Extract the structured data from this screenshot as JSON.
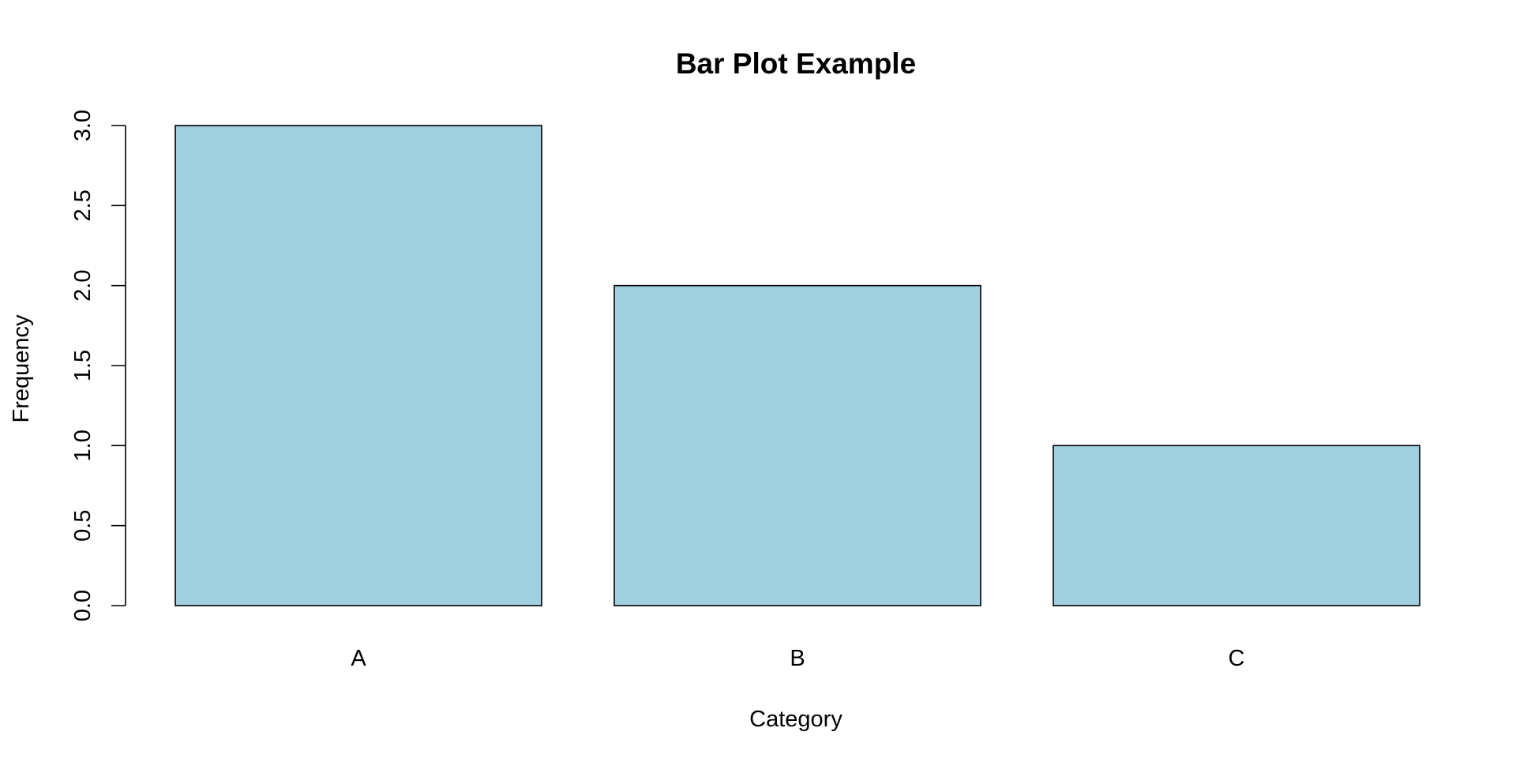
{
  "chart_data": {
    "type": "bar",
    "title": "Bar Plot Example",
    "xlabel": "Category",
    "ylabel": "Frequency",
    "categories": [
      "A",
      "B",
      "C"
    ],
    "values": [
      3,
      2,
      1
    ],
    "ylim": [
      0,
      3
    ],
    "yticks": [
      "0.0",
      "0.5",
      "1.0",
      "1.5",
      "2.0",
      "2.5",
      "3.0"
    ],
    "bar_color": "#a0cfe0",
    "grid": false,
    "legend": "none"
  }
}
